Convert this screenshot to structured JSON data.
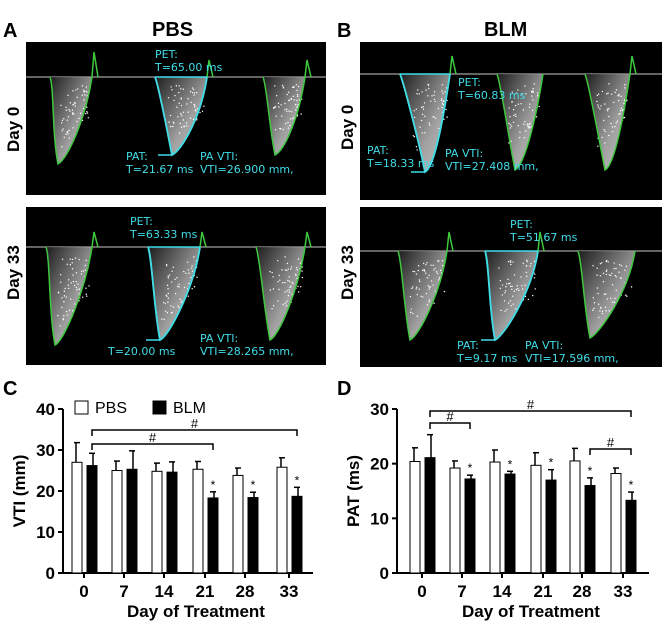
{
  "panels": {
    "A": {
      "letter": "A",
      "title": "PBS",
      "day0": {
        "row_label": "Day 0",
        "pet_label": "PET:",
        "pet_value": "T=65.00 ms",
        "pat_label": "PAT:",
        "pat_value": "T=21.67 ms",
        "vti_label": "PA VTI:",
        "vti_value": "VTI=26.900 mm,"
      },
      "day33": {
        "row_label": "Day 33",
        "pet_label": "PET:",
        "pet_value": "T=63.33 ms",
        "pat_value": "T=20.00 ms",
        "vti_label": "PA VTI:",
        "vti_value": "VTI=28.265 mm,"
      }
    },
    "B": {
      "letter": "B",
      "title": "BLM",
      "day0": {
        "row_label": "Day 0",
        "pet_label": "PET:",
        "pet_value": "T=60.83 ms",
        "pat_label": "PAT:",
        "pat_value": "T=18.33 ms",
        "vti_label": "PA VTI:",
        "vti_value": "VTI=27.408 mm,"
      },
      "day33": {
        "row_label": "Day 33",
        "pet_label": "PET:",
        "pet_value": "T=51.67 ms",
        "pat_label": "PAT:",
        "pat_value": "T=9.17 ms",
        "vti_label": "PA VTI:",
        "vti_value": "VTI=17.596 mm,"
      }
    }
  },
  "colors": {
    "trace_outline": "#3ec83e",
    "trace_cyan": "#40dce8",
    "baseline": "#c8c8c8",
    "pbs_bar": "#ffffff",
    "blm_bar": "#000000"
  },
  "chart_data": [
    {
      "panel": "C",
      "type": "bar",
      "xlabel": "Day of Treatment",
      "ylabel": "VTI (mm)",
      "ylim": [
        0,
        40
      ],
      "yticks": [
        0,
        10,
        20,
        30,
        40
      ],
      "categories": [
        "0",
        "7",
        "14",
        "21",
        "28",
        "33"
      ],
      "legend": [
        "PBS",
        "BLM"
      ],
      "legend_position": "top",
      "series": [
        {
          "name": "PBS",
          "values": [
            27.0,
            25.0,
            24.8,
            25.3,
            23.8,
            25.8
          ],
          "error": [
            4.8,
            2.3,
            2.0,
            1.9,
            1.8,
            2.3
          ]
        },
        {
          "name": "BLM",
          "values": [
            26.2,
            25.3,
            24.6,
            18.3,
            18.4,
            18.7
          ],
          "error": [
            3.0,
            4.5,
            2.5,
            1.5,
            1.3,
            2.2
          ]
        }
      ],
      "asterisks_blm": [
        "21",
        "28",
        "33"
      ],
      "brackets": [
        {
          "from": "0",
          "to": "21",
          "label": "#"
        },
        {
          "from": "0",
          "to": "33",
          "label": "#"
        }
      ]
    },
    {
      "panel": "D",
      "type": "bar",
      "xlabel": "Day of Treatment",
      "ylabel": "PAT (ms)",
      "ylim": [
        0,
        30
      ],
      "yticks": [
        0,
        10,
        20,
        30
      ],
      "categories": [
        "0",
        "7",
        "14",
        "21",
        "28",
        "33"
      ],
      "series": [
        {
          "name": "PBS",
          "values": [
            20.4,
            19.2,
            20.3,
            19.7,
            20.5,
            18.2
          ],
          "error": [
            2.5,
            1.3,
            2.2,
            2.3,
            2.3,
            1.0
          ]
        },
        {
          "name": "BLM",
          "values": [
            21.1,
            17.2,
            18.1,
            17.0,
            16.0,
            13.3
          ],
          "error": [
            4.2,
            0.7,
            0.5,
            1.9,
            1.4,
            1.5
          ]
        }
      ],
      "asterisks_blm": [
        "7",
        "14",
        "21",
        "28",
        "33"
      ],
      "brackets": [
        {
          "from": "0",
          "to": "7",
          "label": "#"
        },
        {
          "from": "0",
          "to": "33",
          "label": "#"
        },
        {
          "from": "28",
          "to": "33",
          "label": "#"
        }
      ]
    }
  ]
}
